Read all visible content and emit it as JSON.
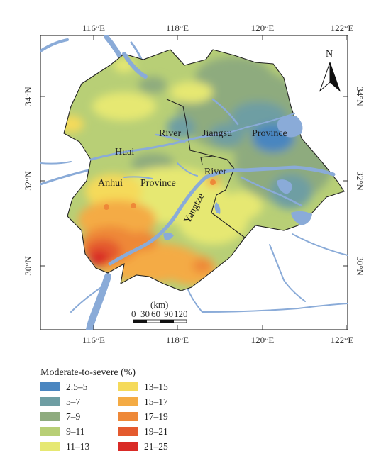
{
  "axes": {
    "x_ticks": [
      "116°E",
      "118°E",
      "120°E",
      "122°E"
    ],
    "y_ticks": [
      "34°N",
      "32°N",
      "30°N"
    ]
  },
  "map_labels": {
    "river_word": "River",
    "jiangsu": "Jiangsu",
    "province_east": "Province",
    "huai": "Huai",
    "anhui": "Anhui",
    "province_west": "Province",
    "river_east": "River",
    "yangtze": "Yangtze"
  },
  "north_arrow": {
    "label": "N"
  },
  "scale_bar": {
    "unit": "(km)",
    "ticks": [
      "0",
      "30",
      "60",
      "90",
      "120"
    ]
  },
  "legend": {
    "title": "Moderate-to-severe (%)",
    "items": [
      {
        "label": "2.5–5",
        "color": "#4a86c0"
      },
      {
        "label": "5–7",
        "color": "#6e9ea3"
      },
      {
        "label": "7–9",
        "color": "#8eab7e"
      },
      {
        "label": "9–11",
        "color": "#b8cf76"
      },
      {
        "label": "11–13",
        "color": "#e6e872"
      },
      {
        "label": "13–15",
        "color": "#f5da5a"
      },
      {
        "label": "15–17",
        "color": "#f4ab44"
      },
      {
        "label": "17–19",
        "color": "#ee8838"
      },
      {
        "label": "19–21",
        "color": "#e45a2e"
      },
      {
        "label": "21–25",
        "color": "#d92a26"
      }
    ]
  },
  "colors": {
    "water": "#8aabd8",
    "frame": "#333333"
  }
}
